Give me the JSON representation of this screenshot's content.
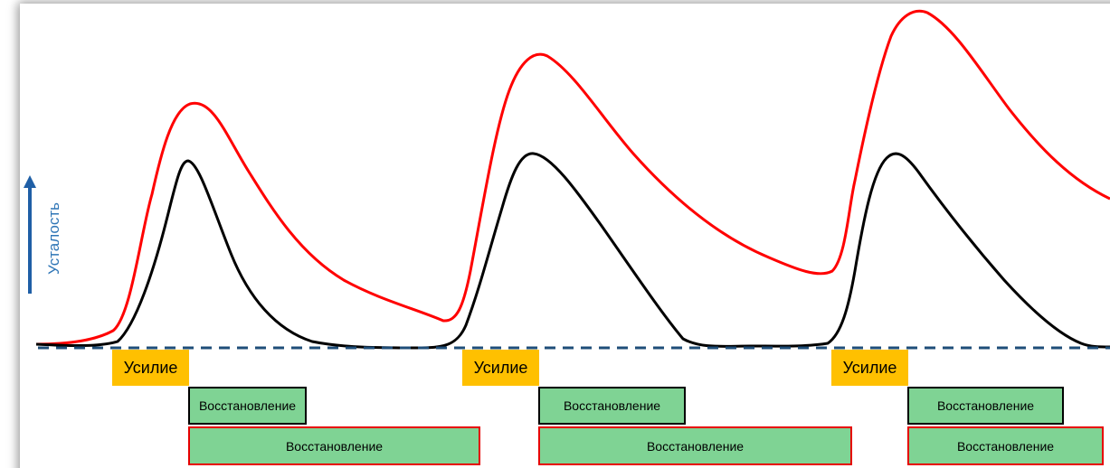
{
  "axis": {
    "y_label": "Усталость",
    "y_arrow_color": "#1f5fa6"
  },
  "colors": {
    "red_curve": "#ff0000",
    "black_curve": "#000000",
    "baseline": "#1f4e79",
    "effort_fill": "#ffc000",
    "recovery_fill": "#7fd394"
  },
  "cycles": [
    {
      "effort_label": "Усилие",
      "recovery_short_label": "Восстановление",
      "recovery_long_label": "Восстановление"
    },
    {
      "effort_label": "Усилие",
      "recovery_short_label": "Восстановление",
      "recovery_long_label": "Восстановление"
    },
    {
      "effort_label": "Усилие",
      "recovery_short_label": "Восстановление",
      "recovery_long_label": "Восстановление"
    }
  ]
}
